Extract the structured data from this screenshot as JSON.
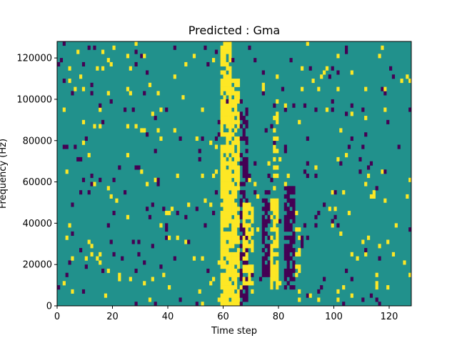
{
  "chart_data": {
    "type": "heatmap",
    "title": "Predicted : Gma",
    "xlabel": "Time step",
    "ylabel": "Frequency (Hz)",
    "xlim": [
      0,
      128
    ],
    "ylim": [
      0,
      128000
    ],
    "x_ticks": [
      0,
      20,
      40,
      60,
      80,
      100,
      120
    ],
    "y_ticks": [
      0,
      20000,
      40000,
      60000,
      80000,
      100000,
      120000
    ],
    "x_tick_labels": [
      "0",
      "20",
      "40",
      "60",
      "80",
      "100",
      "120"
    ],
    "y_tick_labels": [
      "0",
      "20000",
      "40000",
      "60000",
      "80000",
      "100000",
      "120000"
    ],
    "grid": false,
    "colormap": "viridis",
    "value_levels": [
      -1,
      0,
      1
    ],
    "level_colors": {
      "low": "#440154",
      "mid": "#21918c",
      "high": "#fde725"
    },
    "background_value": 0,
    "n_time_steps": 128,
    "n_freq_bins": 64,
    "freq_bin_width_hz": 2000,
    "bands": [
      {
        "t0": 59,
        "t1": 63,
        "f0": 0,
        "f1": 128000,
        "value": 1,
        "density": 0.85
      },
      {
        "t0": 63,
        "t1": 66,
        "f0": 0,
        "f1": 110000,
        "value": 1,
        "density": 0.75
      },
      {
        "t0": 66,
        "t1": 69,
        "f0": 0,
        "f1": 100000,
        "value": -1,
        "density": 0.55
      },
      {
        "t0": 67,
        "t1": 71,
        "f0": 10000,
        "f1": 50000,
        "value": 1,
        "density": 0.6
      },
      {
        "t0": 74,
        "t1": 77,
        "f0": 14000,
        "f1": 56000,
        "value": -1,
        "density": 0.65
      },
      {
        "t0": 77,
        "t1": 80,
        "f0": 8000,
        "f1": 52000,
        "value": 1,
        "density": 0.75
      },
      {
        "t0": 78,
        "t1": 80,
        "f0": 56000,
        "f1": 100000,
        "value": 1,
        "density": 0.35
      },
      {
        "t0": 82,
        "t1": 86,
        "f0": 8000,
        "f1": 58000,
        "value": -1,
        "density": 0.75
      },
      {
        "t0": 86,
        "t1": 88,
        "f0": 0,
        "f1": 40000,
        "value": 1,
        "density": 0.3
      }
    ],
    "scatter_density": 0.05,
    "seed": 7
  }
}
